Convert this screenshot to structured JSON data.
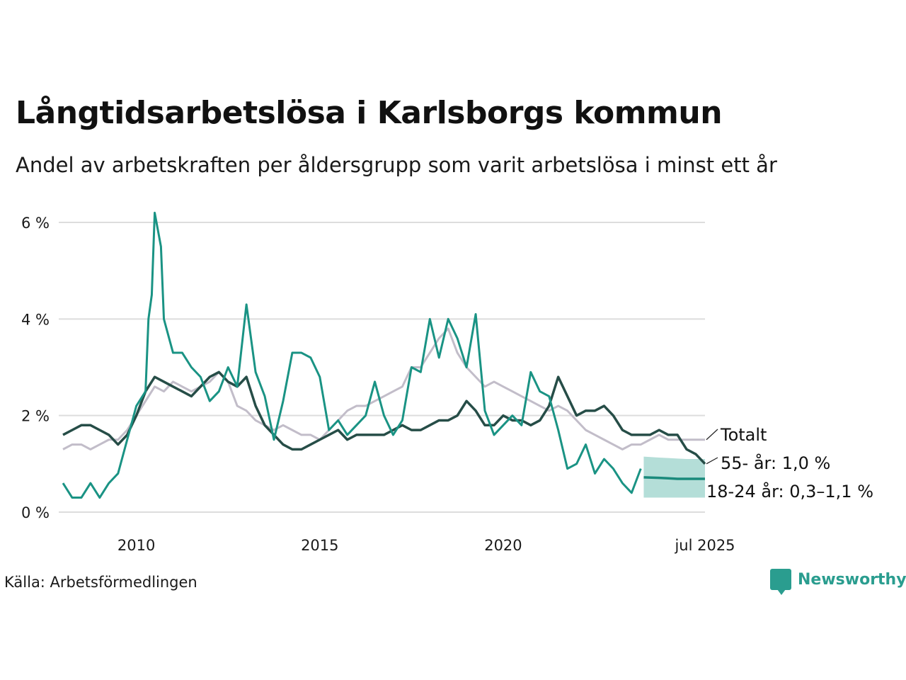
{
  "header": {
    "title": "Långtidsarbetslösa i Karlsborgs kommun",
    "subtitle": "Andel av arbetskraften per åldersgrupp som varit arbetslösa i minst ett år"
  },
  "footer": {
    "source": "Källa: Arbetsförmedlingen",
    "brand": "Newsworthy"
  },
  "colors": {
    "total": "#c2bdc9",
    "age55": "#264d47",
    "age18_24": "#1a9384",
    "forecast_band": "#a7d8d1",
    "forecast_line": "#1a8a7c",
    "grid": "#dddddd"
  },
  "chart_data": {
    "type": "line",
    "title": "Långtidsarbetslösa i Karlsborgs kommun",
    "subtitle": "Andel av arbetskraften per åldersgrupp som varit arbetslösa i minst ett år",
    "xlabel": "",
    "ylabel": "",
    "y_unit": "%",
    "ylim": [
      0,
      6.2
    ],
    "xlim": [
      2008.0,
      2025.5
    ],
    "yticks": [
      {
        "value": 0,
        "label": "0 %"
      },
      {
        "value": 2,
        "label": "2 %"
      },
      {
        "value": 4,
        "label": "4 %"
      },
      {
        "value": 6,
        "label": "6 %"
      }
    ],
    "xticks": [
      {
        "value": 2010,
        "label": "2010"
      },
      {
        "value": 2015,
        "label": "2015"
      },
      {
        "value": 2020,
        "label": "2020"
      },
      {
        "value": 2025.5,
        "label": "jul 2025"
      }
    ],
    "grid": true,
    "legend": "direct labels at right end of lines",
    "series": [
      {
        "name": "Totalt",
        "label": "Totalt",
        "x": [
          2008.0,
          2008.25,
          2008.5,
          2008.75,
          2009.0,
          2009.25,
          2009.5,
          2009.75,
          2010.0,
          2010.25,
          2010.5,
          2010.75,
          2011.0,
          2011.25,
          2011.5,
          2011.75,
          2012.0,
          2012.25,
          2012.5,
          2012.75,
          2013.0,
          2013.25,
          2013.5,
          2013.75,
          2014.0,
          2014.25,
          2014.5,
          2014.75,
          2015.0,
          2015.25,
          2015.5,
          2015.75,
          2016.0,
          2016.25,
          2016.5,
          2016.75,
          2017.0,
          2017.25,
          2017.5,
          2017.75,
          2018.0,
          2018.25,
          2018.5,
          2018.75,
          2019.0,
          2019.25,
          2019.5,
          2019.75,
          2020.0,
          2020.25,
          2020.5,
          2020.75,
          2021.0,
          2021.25,
          2021.5,
          2021.75,
          2022.0,
          2022.25,
          2022.5,
          2022.75,
          2023.0,
          2023.25,
          2023.5,
          2023.75,
          2024.0,
          2024.25,
          2024.5,
          2024.75,
          2025.0,
          2025.25,
          2025.5
        ],
        "y": [
          1.3,
          1.4,
          1.4,
          1.3,
          1.4,
          1.5,
          1.5,
          1.7,
          2.0,
          2.3,
          2.6,
          2.5,
          2.7,
          2.6,
          2.5,
          2.6,
          2.7,
          2.9,
          2.7,
          2.2,
          2.1,
          1.9,
          1.8,
          1.7,
          1.8,
          1.7,
          1.6,
          1.6,
          1.5,
          1.7,
          1.9,
          2.1,
          2.2,
          2.2,
          2.3,
          2.4,
          2.5,
          2.6,
          3.0,
          3.0,
          3.3,
          3.6,
          3.8,
          3.3,
          3.0,
          2.8,
          2.6,
          2.7,
          2.6,
          2.5,
          2.4,
          2.3,
          2.2,
          2.1,
          2.2,
          2.1,
          1.9,
          1.7,
          1.6,
          1.5,
          1.4,
          1.3,
          1.4,
          1.4,
          1.5,
          1.6,
          1.5,
          1.5,
          1.5,
          1.5,
          1.5
        ]
      },
      {
        "name": "55- år",
        "label": "55- år: 1,0 %",
        "x": [
          2008.0,
          2008.25,
          2008.5,
          2008.75,
          2009.0,
          2009.25,
          2009.5,
          2009.75,
          2010.0,
          2010.25,
          2010.5,
          2010.75,
          2011.0,
          2011.25,
          2011.5,
          2011.75,
          2012.0,
          2012.25,
          2012.5,
          2012.75,
          2013.0,
          2013.25,
          2013.5,
          2013.75,
          2014.0,
          2014.25,
          2014.5,
          2014.75,
          2015.0,
          2015.25,
          2015.5,
          2015.75,
          2016.0,
          2016.25,
          2016.5,
          2016.75,
          2017.0,
          2017.25,
          2017.5,
          2017.75,
          2018.0,
          2018.25,
          2018.5,
          2018.75,
          2019.0,
          2019.25,
          2019.5,
          2019.75,
          2020.0,
          2020.25,
          2020.5,
          2020.75,
          2021.0,
          2021.25,
          2021.5,
          2021.75,
          2022.0,
          2022.25,
          2022.5,
          2022.75,
          2023.0,
          2023.25,
          2023.5,
          2023.75,
          2024.0,
          2024.25,
          2024.5,
          2024.75,
          2025.0,
          2025.25,
          2025.5
        ],
        "y": [
          1.6,
          1.7,
          1.8,
          1.8,
          1.7,
          1.6,
          1.4,
          1.6,
          2.0,
          2.5,
          2.8,
          2.7,
          2.6,
          2.5,
          2.4,
          2.6,
          2.8,
          2.9,
          2.7,
          2.6,
          2.8,
          2.2,
          1.8,
          1.6,
          1.4,
          1.3,
          1.3,
          1.4,
          1.5,
          1.6,
          1.7,
          1.5,
          1.6,
          1.6,
          1.6,
          1.6,
          1.7,
          1.8,
          1.7,
          1.7,
          1.8,
          1.9,
          1.9,
          2.0,
          2.3,
          2.1,
          1.8,
          1.8,
          2.0,
          1.9,
          1.9,
          1.8,
          1.9,
          2.2,
          2.8,
          2.4,
          2.0,
          2.1,
          2.1,
          2.2,
          2.0,
          1.7,
          1.6,
          1.6,
          1.6,
          1.7,
          1.6,
          1.6,
          1.3,
          1.2,
          1.0
        ]
      },
      {
        "name": "18-24 år",
        "label": "18-24 år: 0,3–1,1 %",
        "x": [
          2008.0,
          2008.25,
          2008.5,
          2008.75,
          2009.0,
          2009.25,
          2009.5,
          2009.75,
          2010.0,
          2010.25,
          2010.33,
          2010.42,
          2010.5,
          2010.67,
          2010.75,
          2011.0,
          2011.25,
          2011.5,
          2011.75,
          2012.0,
          2012.25,
          2012.5,
          2012.75,
          2013.0,
          2013.25,
          2013.5,
          2013.75,
          2014.0,
          2014.25,
          2014.5,
          2014.75,
          2015.0,
          2015.25,
          2015.5,
          2015.75,
          2016.0,
          2016.25,
          2016.5,
          2016.75,
          2017.0,
          2017.25,
          2017.5,
          2017.75,
          2018.0,
          2018.25,
          2018.5,
          2018.75,
          2019.0,
          2019.25,
          2019.5,
          2019.75,
          2020.0,
          2020.25,
          2020.5,
          2020.75,
          2021.0,
          2021.25,
          2021.5,
          2021.75,
          2022.0,
          2022.25,
          2022.5,
          2022.75,
          2023.0,
          2023.25,
          2023.5,
          2023.75
        ],
        "y": [
          0.6,
          0.3,
          0.3,
          0.6,
          0.3,
          0.6,
          0.8,
          1.5,
          2.2,
          2.5,
          4.0,
          4.5,
          6.2,
          5.5,
          4.0,
          3.3,
          3.3,
          3.0,
          2.8,
          2.3,
          2.5,
          3.0,
          2.6,
          4.3,
          2.9,
          2.4,
          1.5,
          2.3,
          3.3,
          3.3,
          3.2,
          2.8,
          1.7,
          1.9,
          1.6,
          1.8,
          2.0,
          2.7,
          2.0,
          1.6,
          1.9,
          3.0,
          2.9,
          4.0,
          3.2,
          4.0,
          3.6,
          3.0,
          4.1,
          2.1,
          1.6,
          1.8,
          2.0,
          1.8,
          2.9,
          2.5,
          2.4,
          1.7,
          0.9,
          1.0,
          1.4,
          0.8,
          1.1,
          0.9,
          0.6,
          0.4,
          0.9
        ]
      }
    ],
    "forecast": {
      "series": "18-24 år",
      "x": [
        2023.83,
        2024.25,
        2024.5,
        2024.75,
        2025.0,
        2025.25,
        2025.5
      ],
      "y": [
        0.72,
        0.71,
        0.7,
        0.69,
        0.69,
        0.69,
        0.69
      ],
      "lower": [
        0.3,
        0.3,
        0.3,
        0.3,
        0.3,
        0.3,
        0.3
      ],
      "upper": [
        1.15,
        1.13,
        1.12,
        1.11,
        1.1,
        1.1,
        1.1
      ]
    }
  }
}
